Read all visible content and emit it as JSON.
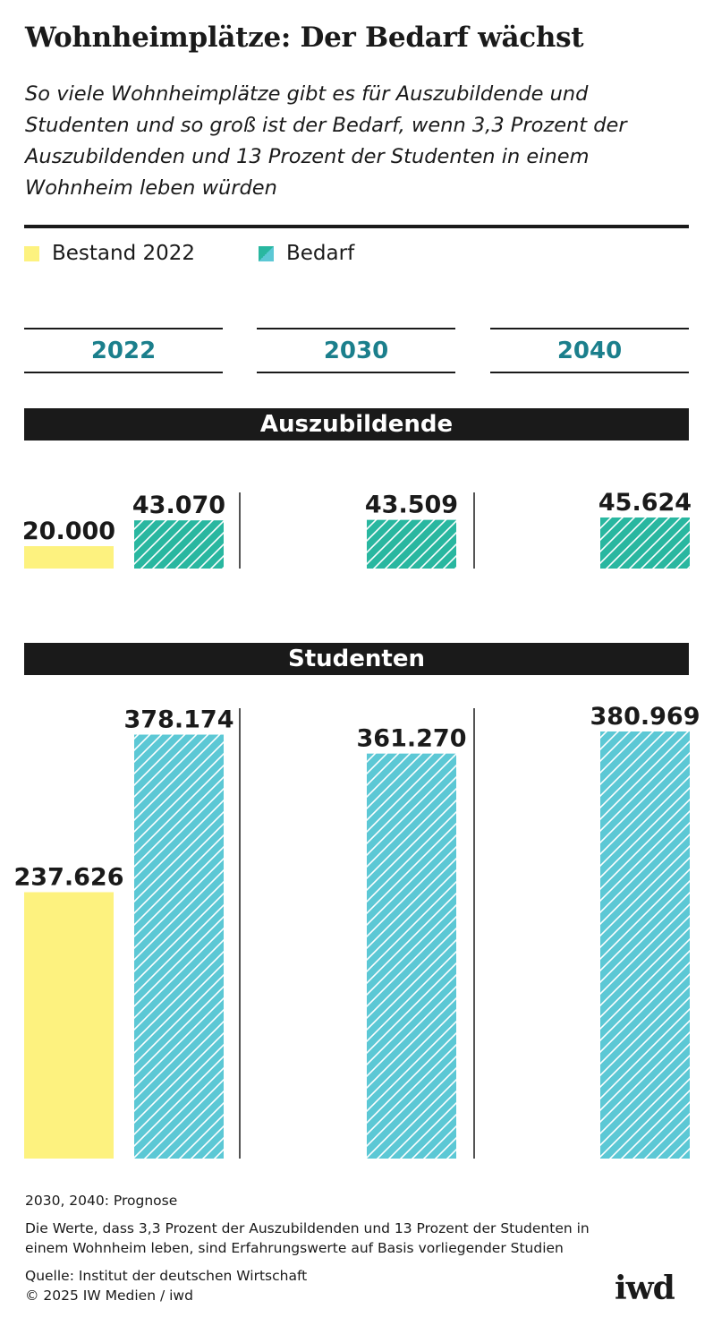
{
  "header": {
    "title": "Wohnheimplätze: Der Bedarf wächst",
    "subtitle_lines": [
      "So viele Wohnheimplätze gibt es für Auszubildende und",
      "Studenten und so groß ist der Bedarf, wenn 3,3 Prozent der",
      "Auszubildenden und 13 Prozent der Studenten in einem",
      "Wohnheim leben würden"
    ]
  },
  "legend": [
    {
      "label": "Bestand 2022",
      "color": "#fdf27f"
    },
    {
      "label": "Bedarf",
      "color": "#29b7a0",
      "color2": "#5cc8d5"
    }
  ],
  "years": [
    "2022",
    "2030",
    "2040"
  ],
  "colors": {
    "bestand": "#fdf27f",
    "bedarf_auszubildende": "#29b7a0",
    "bedarf_studenten": "#5cc8d5",
    "hatch": "#ffffff",
    "year_label": "#1b7f8c",
    "band": "#1a1a1a"
  },
  "chart_data": [
    {
      "type": "bar",
      "title": "Auszubildende",
      "categories": [
        "2022",
        "2030",
        "2040"
      ],
      "series": [
        {
          "name": "Bestand 2022",
          "values": [
            20000,
            null,
            null
          ],
          "labels": [
            "20.000",
            "",
            ""
          ]
        },
        {
          "name": "Bedarf",
          "values": [
            43070,
            43509,
            45624
          ],
          "labels": [
            "43.070",
            "43.509",
            "45.624"
          ]
        }
      ]
    },
    {
      "type": "bar",
      "title": "Studenten",
      "categories": [
        "2022",
        "2030",
        "2040"
      ],
      "series": [
        {
          "name": "Bestand 2022",
          "values": [
            237626,
            null,
            null
          ],
          "labels": [
            "237.626",
            "",
            ""
          ]
        },
        {
          "name": "Bedarf",
          "values": [
            378174,
            361270,
            380969
          ],
          "labels": [
            "378.174",
            "361.270",
            "380.969"
          ]
        }
      ]
    }
  ],
  "footer": {
    "note1": "2030, 2040: Prognose",
    "note2_lines": [
      "Die Werte, dass 3,3 Prozent der Auszubildenden und 13 Prozent der Studenten in",
      "einem Wohnheim leben, sind Erfahrungswerte auf Basis vorliegender Studien"
    ],
    "source": "Quelle: Institut der deutschen Wirtschaft",
    "copyright": "© 2025 IW Medien / iwd",
    "logo": "iwd"
  }
}
